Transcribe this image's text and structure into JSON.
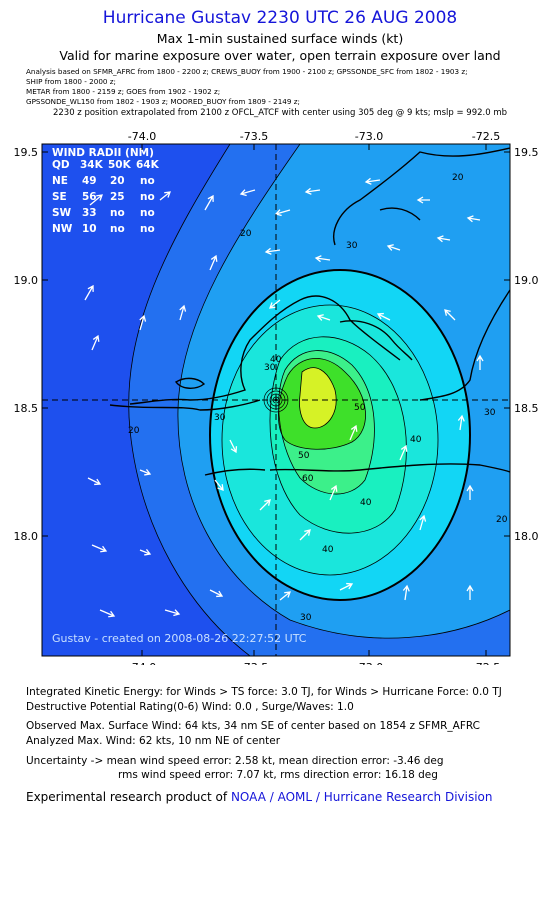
{
  "header": {
    "title": "Hurricane Gustav 2230 UTC 26 AUG 2008",
    "subtitle": "Max 1-min sustained surface winds (kt)",
    "valid": "Valid for marine exposure over water, open terrain exposure over land",
    "analysis_lines": [
      "Analysis based on  SFMR_AFRC from 1800 - 2200 z;  CREWS_BUOY from 1900 - 2100 z;  GPSSONDE_SFC from 1802 - 1903 z;",
      "SHIP from 1800 - 2000 z;",
      "METAR from 1800 - 2159 z;  GOES from 1902 - 1902 z;",
      "GPSSONDE_WL150 from 1802 - 1903 z;  MOORED_BUOY from 1809 - 2149 z;"
    ],
    "extrapolation": "2230 z position extrapolated from 2100 z OFCL_ATCF with center using 305 deg @ 9 kts; mslp = 992.0 mb"
  },
  "map": {
    "lon_labels": [
      "-74.0",
      "-73.5",
      "-73.0",
      "-72.5"
    ],
    "lat_labels": [
      "19.5",
      "19.0",
      "18.5",
      "18.0"
    ],
    "contour_labels": [
      "20",
      "30",
      "40",
      "50",
      "60",
      "20",
      "30",
      "40",
      "30",
      "20",
      "30",
      "40",
      "50",
      "40",
      "30",
      "20"
    ],
    "credit": "Gustav - created on 2008-08-26 22:27:52 UTC",
    "colors": {
      "lt20": "#1e50ee",
      "c20": "#2370f0",
      "c30": "#1f9ff2",
      "c40": "#12d6f5",
      "c45": "#1ae6dc",
      "c50": "#19f0c0",
      "c55": "#3cf08a",
      "c60": "#3ee02a",
      "c64": "#d6f226"
    }
  },
  "wind_radii": {
    "title": "WIND RADII (NM)",
    "headers": [
      "QD",
      "34K",
      "50K",
      "64K"
    ],
    "rows": [
      [
        "NE",
        "49",
        "20",
        "no"
      ],
      [
        "SE",
        "56",
        "25",
        "no"
      ],
      [
        "SW",
        "33",
        "no",
        "no"
      ],
      [
        "NW",
        "10",
        "no",
        "no"
      ]
    ]
  },
  "footer": {
    "ike": "Integrated Kinetic Energy:  for Winds > TS force: 3.0 TJ,  for Winds > Hurricane Force: 0.0 TJ",
    "destructive": "Destructive Potential Rating(0-6)   Wind: 0.0 , Surge/Waves: 1.0",
    "observed": "Observed Max. Surface Wind: 64 kts, 34 nm SE of center based on 1854 z SFMR_AFRC",
    "analyzed": "Analyzed Max. Wind: 62 kts, 10 nm NE of center",
    "uncertainty_1": "Uncertainty -> mean wind speed error: 2.58 kt,   mean direction error:  -3.46 deg",
    "uncertainty_2": "rms wind speed error: 7.07 kt,   rms direction error: 16.18 deg",
    "credit_prefix": "Experimental research product of",
    "credit_org": "NOAA / AOML / Hurricane Research Division"
  }
}
